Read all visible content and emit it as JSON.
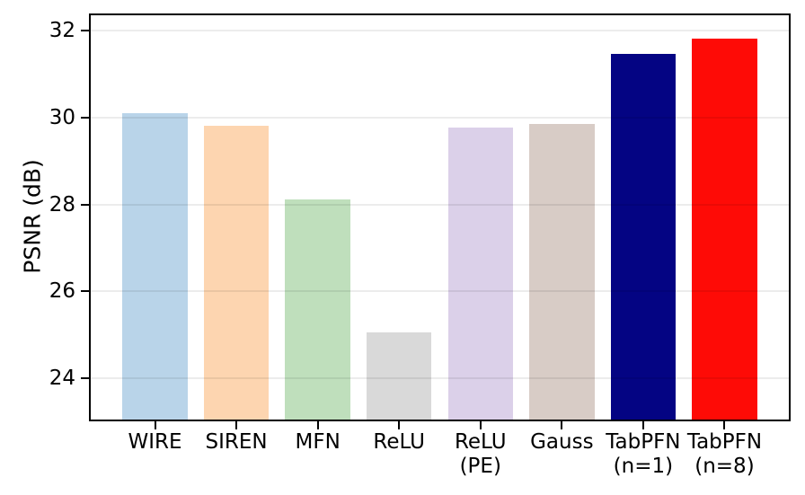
{
  "chart_data": {
    "type": "bar",
    "title": "",
    "xlabel": "",
    "ylabel": "PSNR (dB)",
    "categories": [
      "WIRE",
      "SIREN",
      "MFN",
      "ReLU",
      "ReLU\n(PE)",
      "Gauss",
      "TabPFN\n(n=1)",
      "TabPFN\n(n=8)"
    ],
    "values": [
      30.1,
      29.82,
      28.12,
      25.05,
      29.78,
      29.85,
      31.47,
      31.82
    ],
    "bar_colors": [
      "#b9d4e9",
      "#fdd5b0",
      "#bfdfbc",
      "#d9d9d9",
      "#dbd0e9",
      "#d8ccc6",
      "#040483",
      "#fe0b06"
    ],
    "ylim": [
      23.05,
      32.36
    ],
    "yticks": [
      "24",
      "26",
      "28",
      "30",
      "32"
    ],
    "grid": true,
    "legend_position": "none",
    "axis_color": "#000000",
    "bar_width_fraction": 0.8,
    "x_units_span": 8.58,
    "x_left_offset": 0.79
  }
}
